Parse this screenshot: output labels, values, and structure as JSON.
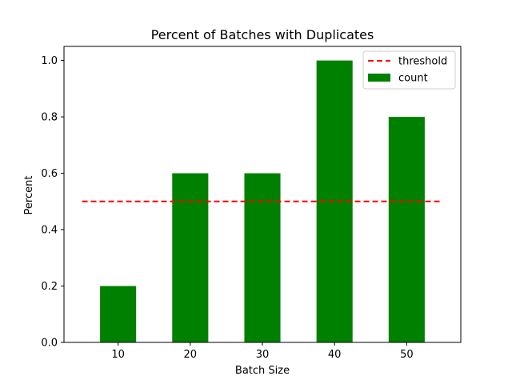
{
  "chart_data": {
    "type": "bar",
    "title": "Percent of Batches with Duplicates",
    "xlabel": "Batch Size",
    "ylabel": "Percent",
    "categories": [
      "10",
      "20",
      "30",
      "40",
      "50"
    ],
    "x": [
      10,
      20,
      30,
      40,
      50
    ],
    "series": [
      {
        "name": "count",
        "values": [
          0.2,
          0.6,
          0.6,
          1.0,
          0.8
        ],
        "color": "#008000"
      }
    ],
    "reference_lines": [
      {
        "name": "threshold",
        "y": 0.5,
        "x_range": [
          5,
          55
        ],
        "style": "dashed",
        "color": "#ff0000"
      }
    ],
    "xlim": [
      2.5,
      57.5
    ],
    "ylim": [
      0,
      1.05
    ],
    "yticks": [
      0.0,
      0.2,
      0.4,
      0.6,
      0.8,
      1.0
    ],
    "ytick_labels": [
      "0.0",
      "0.2",
      "0.4",
      "0.6",
      "0.8",
      "1.0"
    ],
    "xticks": [
      10,
      20,
      30,
      40,
      50
    ],
    "xtick_labels": [
      "10",
      "20",
      "30",
      "40",
      "50"
    ],
    "bar_width": 5,
    "grid": false,
    "legend": {
      "position": "top-right",
      "entries": [
        {
          "label": "threshold",
          "kind": "dashed-line",
          "color": "#ff0000"
        },
        {
          "label": "count",
          "kind": "patch",
          "color": "#008000"
        }
      ]
    }
  }
}
